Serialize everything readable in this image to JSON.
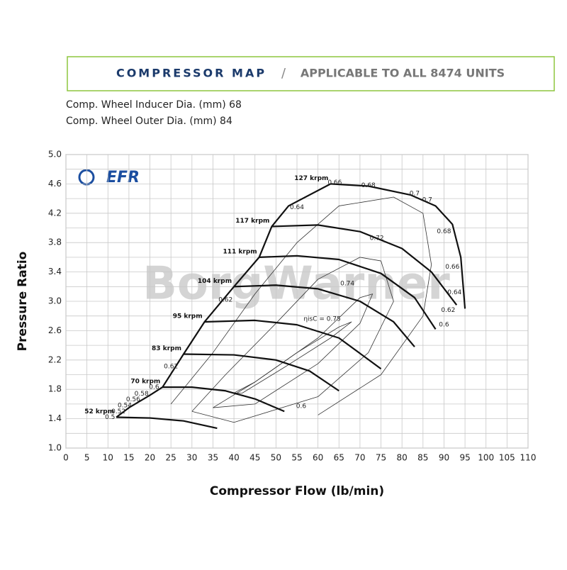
{
  "header": {
    "title": "COMPRESSOR MAP",
    "separator": "/",
    "subtitle": "APPLICABLE TO ALL 8474 UNITS",
    "specs": [
      "Comp. Wheel Inducer Dia. (mm) 68",
      "Comp. Wheel Outer Dia. (mm) 84"
    ],
    "logo": "EFR",
    "watermark": "BorgWarner"
  },
  "chart_data": {
    "type": "line",
    "x_label": "Compressor Flow (lb/min)",
    "y_label": "Pressure Ratio",
    "xlim": [
      0,
      110
    ],
    "ylim": [
      1.0,
      5.0
    ],
    "xticks": [
      0,
      5,
      10,
      15,
      20,
      25,
      30,
      35,
      40,
      45,
      50,
      55,
      60,
      65,
      70,
      75,
      80,
      85,
      90,
      95,
      100,
      105,
      110
    ],
    "yticks": [
      {
        "value": 1.0,
        "label": "1.0"
      },
      {
        "value": 1.2,
        "label": null
      },
      {
        "value": 1.4,
        "label": "1.4"
      },
      {
        "value": 1.6,
        "label": null
      },
      {
        "value": 1.8,
        "label": "1.8"
      },
      {
        "value": 2.0,
        "label": null
      },
      {
        "value": 2.2,
        "label": "2.2"
      },
      {
        "value": 2.4,
        "label": null
      },
      {
        "value": 2.6,
        "label": "2.6"
      },
      {
        "value": 2.8,
        "label": null
      },
      {
        "value": 3.0,
        "label": "3.0"
      },
      {
        "value": 3.2,
        "label": null
      },
      {
        "value": 3.4,
        "label": "3.4"
      },
      {
        "value": 3.6,
        "label": null
      },
      {
        "value": 3.8,
        "label": "3.8"
      },
      {
        "value": 4.0,
        "label": null
      },
      {
        "value": 4.2,
        "label": "4.2"
      },
      {
        "value": 4.4,
        "label": null
      },
      {
        "value": 4.6,
        "label": "4.6"
      },
      {
        "value": 4.8,
        "label": null
      },
      {
        "value": 5.0,
        "label": "5.0"
      }
    ],
    "grid": true,
    "series": [
      {
        "name": "52 krpm",
        "color": "#111",
        "x": [
          12,
          20,
          28,
          36
        ],
        "y": [
          1.42,
          1.41,
          1.37,
          1.27
        ]
      },
      {
        "name": "70 krpm",
        "color": "#111",
        "x": [
          23,
          30,
          38,
          45,
          52
        ],
        "y": [
          1.83,
          1.83,
          1.78,
          1.67,
          1.5
        ]
      },
      {
        "name": "83 krpm",
        "color": "#111",
        "x": [
          28,
          40,
          50,
          58,
          65
        ],
        "y": [
          2.28,
          2.27,
          2.2,
          2.05,
          1.78
        ]
      },
      {
        "name": "95 krpm",
        "color": "#111",
        "x": [
          33,
          45,
          55,
          65,
          75
        ],
        "y": [
          2.72,
          2.74,
          2.68,
          2.5,
          2.08
        ]
      },
      {
        "name": "104 krpm",
        "color": "#111",
        "x": [
          40,
          50,
          60,
          70,
          78,
          83
        ],
        "y": [
          3.2,
          3.22,
          3.17,
          3.0,
          2.72,
          2.38
        ]
      },
      {
        "name": "111 krpm",
        "color": "#111",
        "x": [
          46,
          55,
          65,
          75,
          83,
          88
        ],
        "y": [
          3.6,
          3.62,
          3.57,
          3.38,
          3.05,
          2.62
        ]
      },
      {
        "name": "117 krpm",
        "color": "#111",
        "x": [
          49,
          60,
          70,
          80,
          87,
          93
        ],
        "y": [
          4.02,
          4.04,
          3.95,
          3.72,
          3.4,
          2.95
        ]
      },
      {
        "name": "127 krpm",
        "color": "#111",
        "x": [
          63,
          72,
          82,
          88,
          92,
          94,
          95
        ],
        "y": [
          4.6,
          4.57,
          4.45,
          4.3,
          4.05,
          3.6,
          2.9
        ]
      }
    ],
    "surge_line": {
      "x": [
        12,
        15,
        20,
        23,
        28,
        33,
        40,
        46,
        49,
        53,
        63
      ],
      "y": [
        1.42,
        1.55,
        1.72,
        1.83,
        2.28,
        2.72,
        3.2,
        3.6,
        4.02,
        4.3,
        4.6
      ]
    },
    "contours": [
      {
        "name": "ηisC = 0.75",
        "x": [
          40,
          45,
          55,
          65,
          68,
          63,
          52,
          42,
          40
        ],
        "y": [
          1.75,
          1.9,
          2.3,
          2.65,
          2.72,
          2.5,
          2.1,
          1.75,
          1.75
        ]
      },
      {
        "name": "0.74",
        "x": [
          35,
          45,
          60,
          70,
          73,
          70,
          60,
          45,
          35
        ],
        "y": [
          1.55,
          1.9,
          2.5,
          3.05,
          3.1,
          2.7,
          2.15,
          1.6,
          1.55
        ]
      },
      {
        "name": "0.72",
        "x": [
          30,
          38,
          50,
          60,
          70,
          75,
          78,
          72,
          60,
          40,
          30
        ],
        "y": [
          1.5,
          2.0,
          2.7,
          3.3,
          3.6,
          3.55,
          3.0,
          2.3,
          1.7,
          1.35,
          1.5
        ]
      },
      {
        "name": "0.7",
        "x": [
          25,
          35,
          45,
          55,
          65,
          78,
          85,
          87,
          85,
          75,
          60
        ],
        "y": [
          1.6,
          2.3,
          3.1,
          3.8,
          4.3,
          4.42,
          4.2,
          3.5,
          2.8,
          2.0,
          1.45
        ]
      }
    ],
    "annotations": [
      {
        "text": "0.5",
        "x": 10.5,
        "y": 1.42
      },
      {
        "text": "0.52",
        "x": 12.5,
        "y": 1.5
      },
      {
        "text": "0.54",
        "x": 14,
        "y": 1.58
      },
      {
        "text": "0.56",
        "x": 16,
        "y": 1.66
      },
      {
        "text": "0.58",
        "x": 18,
        "y": 1.74
      },
      {
        "text": "0.6",
        "x": 21,
        "y": 1.83
      },
      {
        "text": "0.62",
        "x": 25,
        "y": 2.11
      },
      {
        "text": "0.62",
        "x": 38,
        "y": 3.02
      },
      {
        "text": "0.64",
        "x": 55,
        "y": 4.28
      },
      {
        "text": "0.66",
        "x": 64,
        "y": 4.62
      },
      {
        "text": "0.68",
        "x": 72,
        "y": 4.58
      },
      {
        "text": "0.7",
        "x": 83,
        "y": 4.47
      },
      {
        "text": "0.7",
        "x": 86,
        "y": 4.38
      },
      {
        "text": "0.68",
        "x": 90,
        "y": 3.95
      },
      {
        "text": "0.66",
        "x": 92,
        "y": 3.47
      },
      {
        "text": "0.64",
        "x": 92.5,
        "y": 3.12
      },
      {
        "text": "0.62",
        "x": 91,
        "y": 2.88
      },
      {
        "text": "0.6",
        "x": 90,
        "y": 2.68
      },
      {
        "text": "0.72",
        "x": 74,
        "y": 3.86
      },
      {
        "text": "0.74",
        "x": 67,
        "y": 3.24
      },
      {
        "text": "ηisC = 0.75",
        "x": 61,
        "y": 2.76
      },
      {
        "text": "0.6",
        "x": 56,
        "y": 1.57
      }
    ]
  }
}
